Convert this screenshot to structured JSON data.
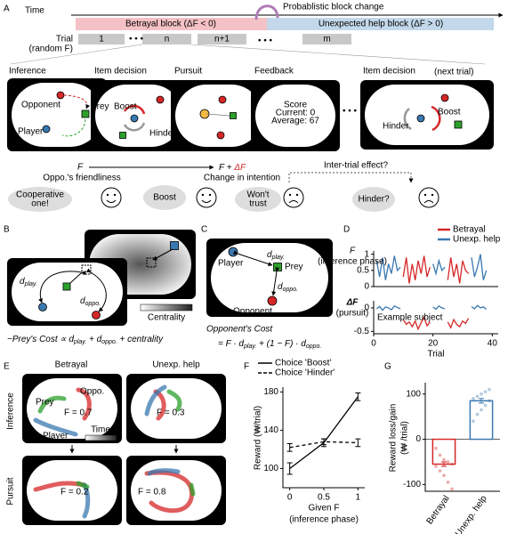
{
  "panel_labels": [
    "A",
    "B",
    "C",
    "D",
    "E",
    "F",
    "G"
  ],
  "panel_a": {
    "time": "Time",
    "betrayal_block": "Betrayal block (ΔF < 0)",
    "help_block": "Unexpected help block (ΔF > 0)",
    "block_change": "Probablistic block change",
    "trial": "Trial",
    "trial_note": "(random F)",
    "trial_cells": [
      "1",
      "n",
      "n+1",
      "m"
    ],
    "stage_titles": [
      "Inference",
      "Item decision",
      "Pursuit",
      "Feedback",
      "Item decision"
    ],
    "next_trial": "(next trial)",
    "inference_labels": [
      "Opponent",
      "Prey",
      "Player"
    ],
    "decision_labels": [
      "Boost",
      "Hinder"
    ],
    "feedback_lines": [
      "Score",
      "Current: 0",
      "Average: 67"
    ],
    "next_labels": [
      "Hinder",
      "Boost"
    ],
    "f": "F",
    "f_caption": "Oppo.'s friendliness",
    "f_plus": [
      "F + ",
      "ΔF"
    ],
    "change_caption": "Change in intention",
    "inter_trial": "Inter-trial effect?",
    "bubbles": [
      [
        "Cooperative",
        "one!"
      ],
      [
        "Boost"
      ],
      [
        "Won't",
        "trust"
      ],
      [
        "Hinder?"
      ]
    ]
  },
  "panel_b": {
    "d_play": [
      "d",
      "play."
    ],
    "d_oppo": [
      "d",
      "oppo."
    ],
    "centrality": "Centrality",
    "formula": [
      "−Prey's Cost ∝ d",
      "play.",
      " + d",
      "oppo.",
      " + centrality"
    ]
  },
  "panel_c": {
    "labels": [
      "Player",
      "Prey",
      "Opponent"
    ],
    "d_play": [
      "d",
      "play."
    ],
    "d_oppo": [
      "d",
      "oppo."
    ],
    "caption": "Opponent's Cost",
    "formula": [
      "= F · d",
      "play.",
      " + (1 − F) · d",
      "oppo."
    ]
  },
  "panel_e": {
    "columns": [
      "Betrayal",
      "Unexp. help"
    ],
    "rows": [
      "Inference",
      "Pursuit"
    ],
    "labels": [
      "Oppo.",
      "Prey",
      "Player"
    ],
    "time": "Time",
    "f_labels": [
      "F = 0.7",
      "F = 0.3",
      "F = 0.2",
      "F = 0.8"
    ]
  },
  "chart_data": [
    {
      "type": "line",
      "ylabel": "F",
      "ylabel_note": "(inference phase)",
      "x": [
        1,
        2,
        3,
        4,
        5,
        6,
        7,
        8,
        9,
        10,
        11,
        12,
        13,
        14,
        15,
        16,
        17,
        18,
        19,
        20,
        21,
        22,
        23,
        24,
        25,
        26,
        27,
        28,
        29,
        30,
        31,
        32,
        33,
        34,
        35,
        36,
        37,
        38
      ],
      "xlim": [
        0,
        42
      ],
      "ylim": [
        0,
        1.1
      ],
      "yticks": [
        0,
        0.5,
        1
      ],
      "legend": "upper right",
      "series": [
        {
          "name": "Betrayal",
          "color": "#d62728",
          "values": [
            null,
            null,
            null,
            null,
            null,
            null,
            null,
            null,
            null,
            0.3,
            0.9,
            0.1,
            0.7,
            0.2,
            0.8,
            0.4,
            0.95,
            0.3,
            0.6,
            null,
            null,
            null,
            null,
            null,
            0.2,
            0.9,
            0.3,
            0.7,
            0.1,
            0.8,
            0.5,
            0.4,
            null,
            null,
            null,
            null,
            null,
            null
          ]
        },
        {
          "name": "Unexp. help",
          "color": "#3a78b0",
          "values": [
            0.8,
            0.3,
            0.9,
            0.2,
            0.7,
            0.4,
            0.95,
            0.5,
            0.6,
            null,
            null,
            null,
            null,
            null,
            null,
            null,
            null,
            null,
            null,
            0.7,
            0.4,
            0.8,
            0.5,
            0.6,
            null,
            null,
            null,
            null,
            null,
            null,
            null,
            null,
            0.9,
            0.3,
            0.6,
            1.0,
            0.2,
            0.5
          ]
        }
      ]
    },
    {
      "type": "line",
      "ylabel": "ΔF",
      "ylabel_note": "(pursuit)",
      "annotation": "Example subject",
      "x": [
        1,
        2,
        3,
        4,
        5,
        6,
        7,
        8,
        9,
        10,
        11,
        12,
        13,
        14,
        15,
        16,
        17,
        18,
        19,
        20,
        21,
        22,
        23,
        24,
        25,
        26,
        27,
        28,
        29,
        30,
        31,
        32,
        33,
        34,
        35,
        36,
        37,
        38
      ],
      "xlim": [
        0,
        42
      ],
      "xticks": [
        0,
        20,
        40
      ],
      "xlabel": "Trial",
      "ylim": [
        -0.55,
        0.15
      ],
      "yticks": [
        -0.5,
        0
      ],
      "series": [
        {
          "name": "Betrayal",
          "color": "#d62728",
          "values": [
            null,
            null,
            null,
            null,
            null,
            null,
            null,
            null,
            null,
            -0.25,
            -0.35,
            -0.3,
            -0.4,
            -0.28,
            -0.45,
            -0.32,
            -0.2,
            -0.38,
            -0.3,
            null,
            null,
            null,
            null,
            null,
            -0.3,
            -0.42,
            -0.25,
            -0.35,
            -0.4,
            -0.28,
            -0.33,
            -0.22,
            null,
            null,
            null,
            null,
            null,
            null
          ]
        },
        {
          "name": "Unexp. help",
          "color": "#3a78b0",
          "values": [
            -0.02,
            0.03,
            -0.05,
            0.02,
            0.0,
            -0.04,
            0.04,
            0.01,
            -0.02,
            null,
            null,
            null,
            null,
            null,
            null,
            null,
            null,
            null,
            null,
            0.02,
            -0.03,
            0.04,
            0.0,
            -0.02,
            null,
            null,
            null,
            null,
            null,
            null,
            null,
            null,
            0.03,
            -0.02,
            0.05,
            0.0,
            0.02,
            -0.03
          ]
        }
      ]
    },
    {
      "type": "line",
      "xlabel": "Given F",
      "xlabel_note": "(inference phase)",
      "ylabel": "Reward (₩/trial)",
      "x": [
        0,
        0.5,
        1
      ],
      "xlim": [
        -0.1,
        1.1
      ],
      "xticks": [
        0,
        0.5,
        1
      ],
      "ylim": [
        80,
        185
      ],
      "yticks": [
        100,
        140,
        180
      ],
      "legend": "upper left",
      "series": [
        {
          "name": "Choice 'Boost'",
          "color": "#000000",
          "linestyle": "solid",
          "values": [
            100,
            127,
            175
          ],
          "errors": [
            6,
            4,
            4
          ]
        },
        {
          "name": "Choice 'Hinder'",
          "color": "#000000",
          "linestyle": "dashed",
          "values": [
            122,
            128,
            127
          ],
          "errors": [
            4,
            3,
            4
          ]
        }
      ]
    },
    {
      "type": "bar",
      "ylabel": "Reward loss/gain",
      "ylabel_note": "(₩ /trial)",
      "categories": [
        "Betrayal",
        "Unexp. help"
      ],
      "values": [
        -55,
        85
      ],
      "errors": [
        5,
        5
      ],
      "colors": [
        "#d62728",
        "#3a78b0"
      ],
      "points": [
        [
          -20,
          -35,
          -45,
          -50,
          -55,
          -60,
          -70,
          -80,
          -95,
          -110
        ],
        [
          40,
          55,
          65,
          75,
          85,
          90,
          95,
          100,
          105,
          110
        ]
      ],
      "ylim": [
        -115,
        125
      ],
      "yticks": [
        -100,
        0,
        100
      ]
    }
  ]
}
